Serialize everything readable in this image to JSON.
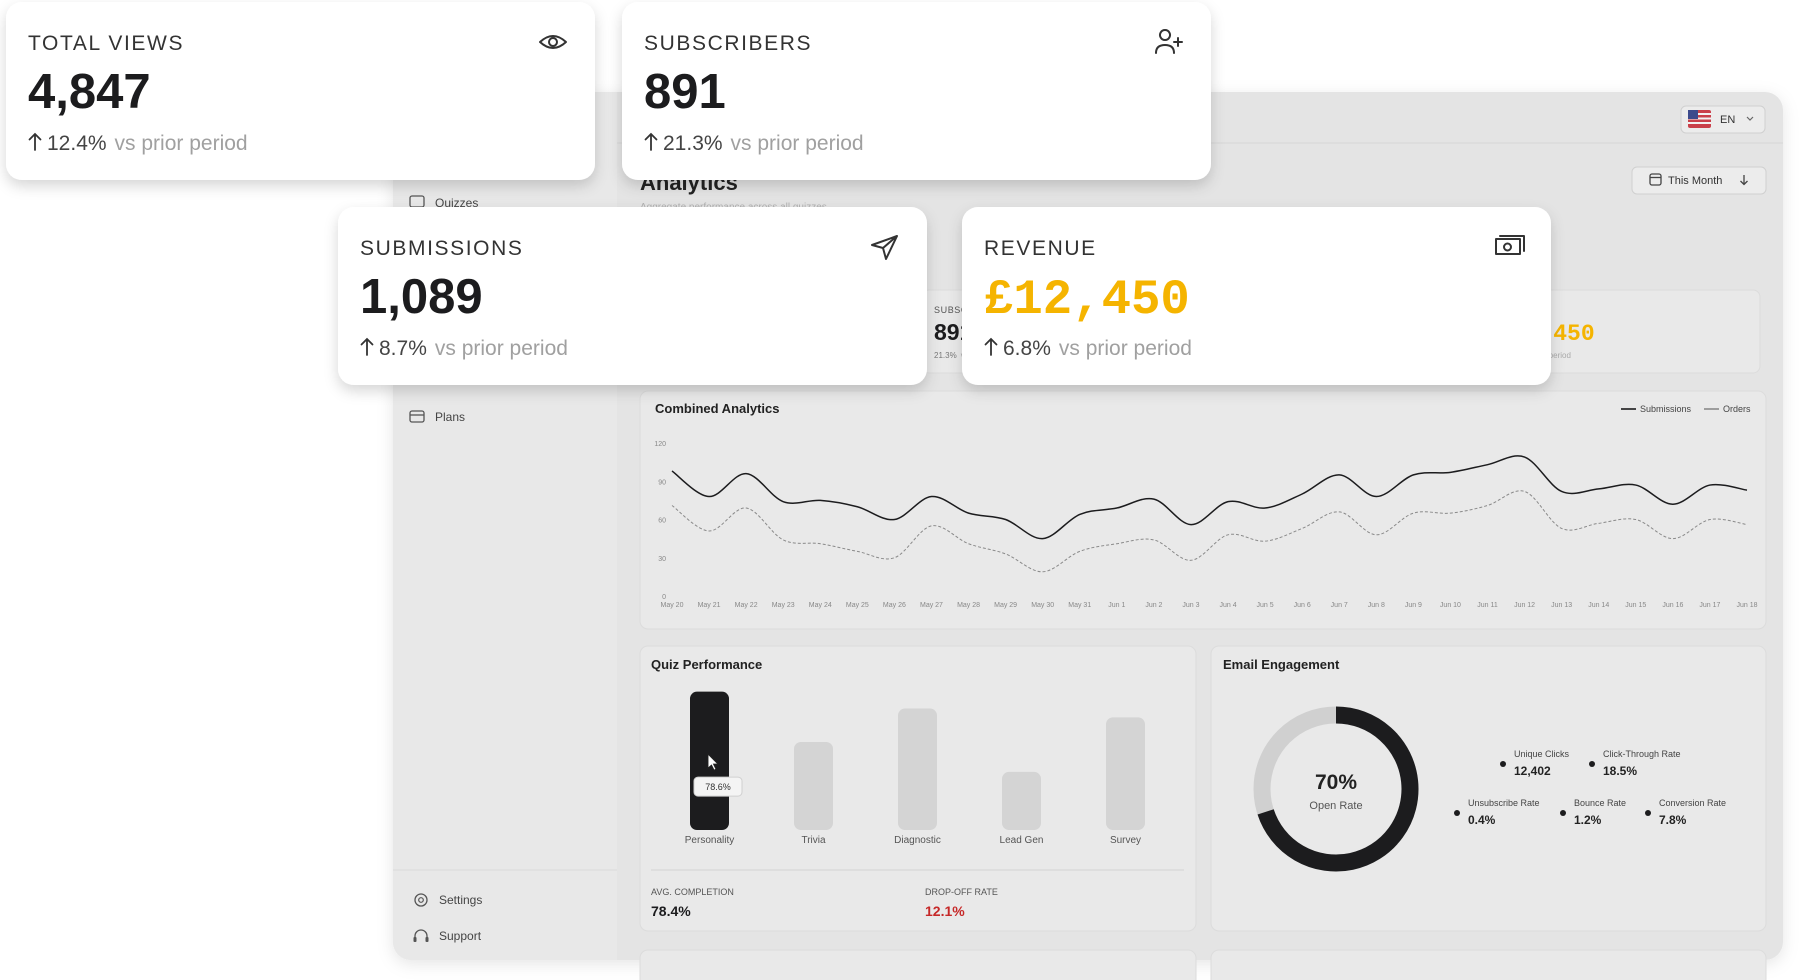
{
  "stat_cards": [
    {
      "label": "TOTAL VIEWS",
      "value": "4,847",
      "change": "12.4%",
      "comparison": "vs prior period",
      "color": "#1c1c1e"
    },
    {
      "label": "SUBSCRIBERS",
      "value": "891",
      "change": "21.3%",
      "comparison": "vs prior period",
      "color": "#1c1c1e"
    },
    {
      "label": "SUBMISSIONS",
      "value": "1,089",
      "change": "8.7%",
      "comparison": "vs prior period",
      "color": "#1c1c1e"
    },
    {
      "label": "REVENUE",
      "value": "£12,450",
      "change": "6.8%",
      "comparison": "vs prior period",
      "color": "#f5b400"
    }
  ],
  "dashboard": {
    "title": "Analytics",
    "subtitle": "Aggregate performance across all quizzes",
    "language": "EN",
    "period": "This Month",
    "sidebar": [
      "Quizzes",
      "Plans",
      "Settings",
      "Support"
    ]
  },
  "combined_chart": {
    "type": "line",
    "title": "Combined Analytics",
    "x": [
      "May 20",
      "May 21",
      "May 22",
      "May 23",
      "May 24",
      "May 25",
      "May 26",
      "May 27",
      "May 28",
      "May 29",
      "May 30",
      "May 31",
      "Jun 1",
      "Jun 2",
      "Jun 3",
      "Jun 4",
      "Jun 5",
      "Jun 6",
      "Jun 7",
      "Jun 8",
      "Jun 9",
      "Jun 10",
      "Jun 11",
      "Jun 12",
      "Jun 13",
      "Jun 14",
      "Jun 15",
      "Jun 16",
      "Jun 17",
      "Jun 18"
    ],
    "series": [
      {
        "name": "Submissions",
        "color": "#1c1c1e",
        "dashed": false,
        "values": [
          98,
          78,
          96,
          74,
          75,
          70,
          60,
          78,
          65,
          60,
          45,
          64,
          69,
          76,
          56,
          74,
          69,
          80,
          95,
          78,
          95,
          97,
          103,
          109,
          82,
          84,
          87,
          72,
          87,
          83
        ]
      },
      {
        "name": "Orders",
        "color": "#8a8a8a",
        "dashed": true,
        "values": [
          71,
          51,
          69,
          44,
          41,
          35,
          30,
          55,
          41,
          33,
          19,
          35,
          41,
          44,
          28,
          48,
          43,
          53,
          66,
          48,
          65,
          65,
          71,
          82,
          53,
          57,
          60,
          45,
          60,
          56
        ]
      }
    ],
    "ylim": [
      0,
      120
    ],
    "yticks": [
      0,
      30,
      60,
      90,
      120
    ],
    "grid": false
  },
  "quiz_chart": {
    "type": "bar",
    "title": "Quiz Performance",
    "categories": [
      "Personality",
      "Trivia",
      "Diagnostic",
      "Lead Gen",
      "Survey"
    ],
    "values": [
      78.6,
      50,
      69,
      33,
      64
    ],
    "value_labels": [
      "78.6%",
      null,
      null,
      null,
      null
    ],
    "colors": [
      "#1c1c1e",
      "#d4d4d4",
      "#d4d4d4",
      "#d4d4d4",
      "#d4d4d4"
    ]
  },
  "quiz_summary": [
    {
      "label": "AVG. COMPLETION",
      "value": "78.4%",
      "color": "#1c1c1e"
    },
    {
      "label": "DROP-OFF RATE",
      "value": "12.1%",
      "color": "#c62828"
    }
  ],
  "email": {
    "title": "Email Engagement",
    "open_rate": {
      "value": 70,
      "label": "70%",
      "name": "Open Rate"
    },
    "metrics": [
      {
        "label": "Unique Clicks",
        "value": "12,402"
      },
      {
        "label": "Click-Through Rate",
        "value": "18.5%"
      },
      {
        "label": "Unsubscribe Rate",
        "value": "0.4%"
      },
      {
        "label": "Bounce Rate",
        "value": "1.2%"
      },
      {
        "label": "Conversion Rate",
        "value": "7.8%"
      }
    ]
  }
}
